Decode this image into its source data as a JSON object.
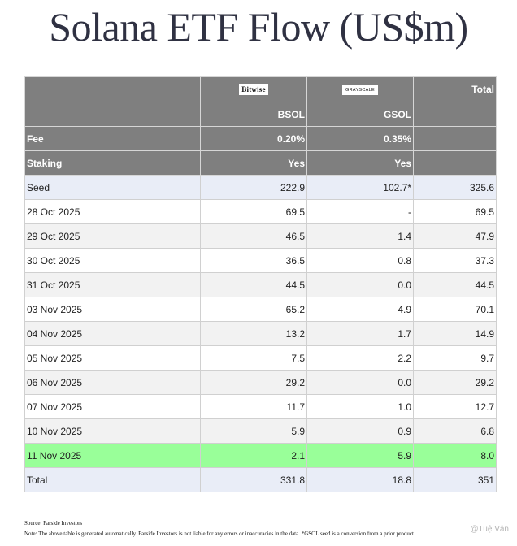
{
  "title": "Solana ETF Flow (US$m)",
  "header": {
    "logos": {
      "bitwise": "Bitwise",
      "grayscale": "GRAYSCALE",
      "total": "Total"
    },
    "tickers": {
      "label": "",
      "bsol": "BSOL",
      "gsol": "GSOL",
      "total": ""
    },
    "fee": {
      "label": "Fee",
      "bsol": "0.20%",
      "gsol": "0.35%",
      "total": ""
    },
    "staking": {
      "label": "Staking",
      "bsol": "Yes",
      "gsol": "Yes",
      "total": ""
    }
  },
  "rows": [
    {
      "date": "Seed",
      "bsol": "222.9",
      "gsol": "102.7*",
      "total": "325.6"
    },
    {
      "date": "28 Oct 2025",
      "bsol": "69.5",
      "gsol": "-",
      "total": "69.5"
    },
    {
      "date": "29 Oct 2025",
      "bsol": "46.5",
      "gsol": "1.4",
      "total": "47.9"
    },
    {
      "date": "30 Oct 2025",
      "bsol": "36.5",
      "gsol": "0.8",
      "total": "37.3"
    },
    {
      "date": "31 Oct 2025",
      "bsol": "44.5",
      "gsol": "0.0",
      "total": "44.5"
    },
    {
      "date": "03 Nov 2025",
      "bsol": "65.2",
      "gsol": "4.9",
      "total": "70.1"
    },
    {
      "date": "04 Nov 2025",
      "bsol": "13.2",
      "gsol": "1.7",
      "total": "14.9"
    },
    {
      "date": "05 Nov 2025",
      "bsol": "7.5",
      "gsol": "2.2",
      "total": "9.7"
    },
    {
      "date": "06 Nov 2025",
      "bsol": "29.2",
      "gsol": "0.0",
      "total": "29.2"
    },
    {
      "date": "07 Nov 2025",
      "bsol": "11.7",
      "gsol": "1.0",
      "total": "12.7"
    },
    {
      "date": "10 Nov 2025",
      "bsol": "5.9",
      "gsol": "0.9",
      "total": "6.8"
    },
    {
      "date": "11 Nov 2025",
      "bsol": "2.1",
      "gsol": "5.9",
      "total": "8.0"
    }
  ],
  "total_row": {
    "label": "Total",
    "bsol": "331.8",
    "gsol": "18.8",
    "total": "351"
  },
  "footer": {
    "source": "Source: Farside Investors",
    "note": "Note: The above table is generated automatically. Farside Investors is not liable for any errors or inaccuracies in the data. *GSOL seed is a conversion from a prior product"
  },
  "watermark": "@Tuệ Vân",
  "colors": {
    "header_bg": "#7f7f7f",
    "seed_row_bg": "#e9edf7",
    "alt_row_bg": "#f2f2f2",
    "latest_row_bg": "#99ff99",
    "title": "#2f3142"
  }
}
